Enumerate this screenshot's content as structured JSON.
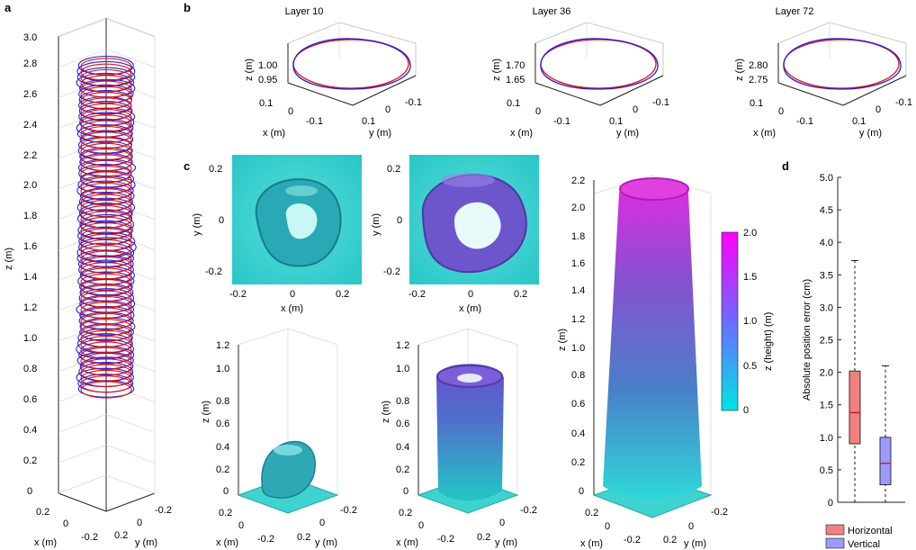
{
  "panels": {
    "a": {
      "letter": "a",
      "z_ticks": [
        "0",
        "0.2",
        "0.4",
        "0.6",
        "0.8",
        "1.0",
        "1.2",
        "1.4",
        "1.6",
        "1.8",
        "2.0",
        "2.2",
        "2.4",
        "2.6",
        "2.8",
        "3.0"
      ],
      "z_label": "z (m)",
      "x_ticks": [
        "0.2",
        "0",
        "-0.2"
      ],
      "y_ticks": [
        "0.2",
        "0",
        "-0.2"
      ],
      "x_label": "x (m)",
      "y_label": "y (m)",
      "colors": {
        "measured": "#2222dd",
        "reference": "#dd1111"
      }
    },
    "b": {
      "letter": "b",
      "plots": [
        {
          "title": "Layer 10",
          "z_ticks": [
            "1.00",
            "0.95"
          ]
        },
        {
          "title": "Layer 36",
          "z_ticks": [
            "1.70",
            "1.65"
          ]
        },
        {
          "title": "Layer 72",
          "z_ticks": [
            "2.80",
            "2.75"
          ]
        }
      ],
      "z_label": "z (m)",
      "x_label": "x (m)",
      "y_label": "y (m)",
      "x_ticks": [
        "0.1",
        "0",
        "-0.1"
      ],
      "y_ticks": [
        "0.1",
        "0",
        "-0.1"
      ]
    },
    "c": {
      "letter": "c",
      "top_y_ticks": [
        "0.2",
        "0",
        "-0.2"
      ],
      "top_x_ticks": [
        "-0.2",
        "0",
        "0.2"
      ],
      "x_label": "x (m)",
      "y_label": "y (m)",
      "z_label": "z (m)",
      "small_z_ticks": [
        "0",
        "0.2",
        "0.4",
        "0.6",
        "0.8",
        "1.0",
        "1.2"
      ],
      "big_z_ticks": [
        "0",
        "0.2",
        "0.4",
        "0.6",
        "0.8",
        "1.0",
        "1.2",
        "1.4",
        "1.6",
        "1.8",
        "2.0",
        "2.2"
      ],
      "bottom_ticks": [
        "0.2",
        "0",
        "-0.2"
      ],
      "colorbar_ticks": [
        "2.0",
        "1.5",
        "1.0",
        "0.5",
        "0"
      ],
      "colorbar_label": "z (height) (m)",
      "colormap": [
        "#00e5e5",
        "#6b6bff",
        "#ff00ff"
      ]
    },
    "d": {
      "letter": "d",
      "ylabel": "Absolute position error (cm)",
      "y_ticks": [
        "0",
        "0.5",
        "1.0",
        "1.5",
        "2.0",
        "2.5",
        "3.0",
        "3.5",
        "4.0",
        "4.5",
        "5.0"
      ],
      "legend": [
        "Horizontal",
        "Vertical"
      ]
    }
  },
  "chart_data": {
    "type": "box",
    "title": "",
    "ylabel": "Absolute position error (cm)",
    "ylim": [
      0,
      5.0
    ],
    "series": [
      {
        "name": "Horizontal",
        "color": "#f28080",
        "whisker_low": 0.0,
        "q1": 0.9,
        "median": 1.38,
        "q3": 2.02,
        "whisker_high": 3.72
      },
      {
        "name": "Vertical",
        "color": "#9a9aff",
        "whisker_low": 0.0,
        "q1": 0.27,
        "median": 0.6,
        "q3": 1.0,
        "whisker_high": 2.1
      }
    ],
    "legend_position": "bottom"
  }
}
